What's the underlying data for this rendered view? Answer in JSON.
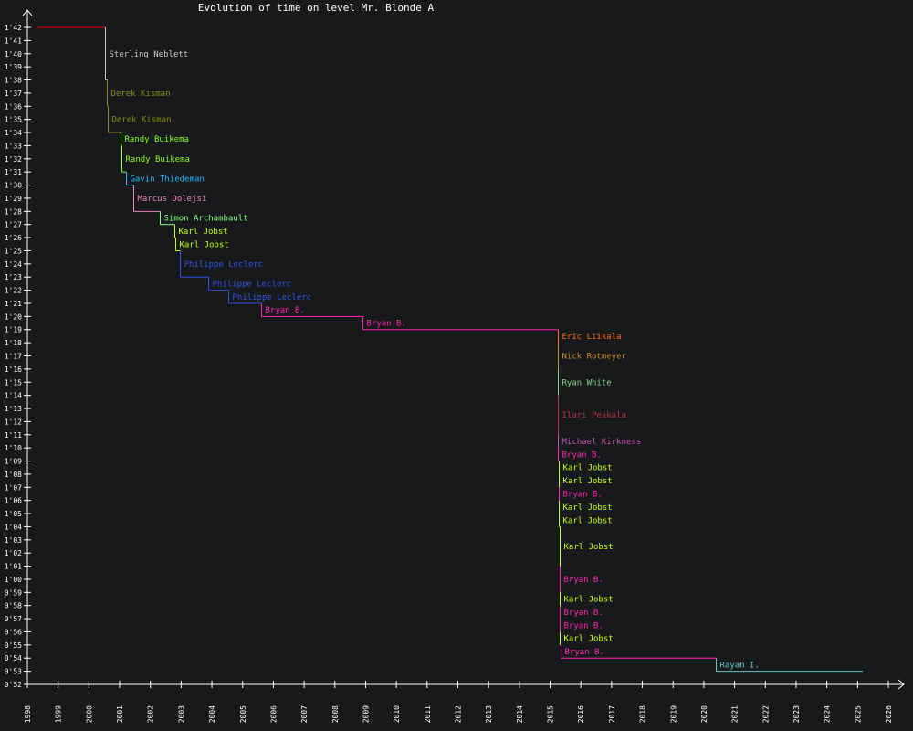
{
  "chart_data": {
    "type": "line",
    "title": "Evolution of time on level Mr. Blonde A",
    "xlabel": "",
    "ylabel": "",
    "xlim": [
      1998,
      2026
    ],
    "ylim_seconds": [
      52,
      102
    ],
    "x_ticks": [
      "1998",
      "1999",
      "2000",
      "2001",
      "2002",
      "2003",
      "2004",
      "2005",
      "2006",
      "2007",
      "2008",
      "2009",
      "2010",
      "2011",
      "2012",
      "2013",
      "2014",
      "2015",
      "2016",
      "2017",
      "2018",
      "2019",
      "2020",
      "2021",
      "2022",
      "2023",
      "2024",
      "2025",
      "2026"
    ],
    "y_ticks": [
      "0'52",
      "0'53",
      "0'54",
      "0'55",
      "0'56",
      "0'57",
      "0'58",
      "0'59",
      "1'00",
      "1'01",
      "1'02",
      "1'03",
      "1'04",
      "1'05",
      "1'06",
      "1'07",
      "1'08",
      "1'09",
      "1'10",
      "1'11",
      "1'12",
      "1'13",
      "1'14",
      "1'15",
      "1'16",
      "1'17",
      "1'18",
      "1'19",
      "1'20",
      "1'21",
      "1'22",
      "1'23",
      "1'24",
      "1'25",
      "1'26",
      "1'27",
      "1'28",
      "1'29",
      "1'30",
      "1'31",
      "1'32",
      "1'33",
      "1'34",
      "1'35",
      "1'36",
      "1'37",
      "1'38",
      "1'39",
      "1'40",
      "1'41",
      "1'42"
    ],
    "start": {
      "year": 1998.3,
      "time": 102,
      "color": "#ff0000"
    },
    "end_year": 2025.17,
    "records": [
      {
        "name": "Sterling Neblett",
        "year": 2000.52,
        "time": 98,
        "color": "#c8c8c8"
      },
      {
        "name": "Derek Kisman",
        "year": 2000.58,
        "time": 96,
        "color": "#8c8a14"
      },
      {
        "name": "Derek Kisman",
        "year": 2000.61,
        "time": 94,
        "color": "#8c8a14"
      },
      {
        "name": "Randy Buikema",
        "year": 2001.03,
        "time": 93,
        "color": "#86ff1c"
      },
      {
        "name": "Randy Buikema",
        "year": 2001.06,
        "time": 91,
        "color": "#86ff1c"
      },
      {
        "name": "Gavin Thiedeman",
        "year": 2001.21,
        "time": 90,
        "color": "#1cbcff"
      },
      {
        "name": "Marcus Dolejsi",
        "year": 2001.44,
        "time": 88,
        "color": "#e884c4"
      },
      {
        "name": "Simon Archambault",
        "year": 2002.31,
        "time": 87,
        "color": "#84ff84"
      },
      {
        "name": "Karl Jobst",
        "year": 2002.78,
        "time": 86,
        "color": "#ccff00"
      },
      {
        "name": "Karl Jobst",
        "year": 2002.81,
        "time": 85,
        "color": "#ccff00"
      },
      {
        "name": "Philippe Leclerc",
        "year": 2002.96,
        "time": 83,
        "color": "#2c54e4"
      },
      {
        "name": "Philippe Leclerc",
        "year": 2003.88,
        "time": 82,
        "color": "#2c54e4"
      },
      {
        "name": "Philippe Leclerc",
        "year": 2004.53,
        "time": 81,
        "color": "#2c54e4"
      },
      {
        "name": "Bryan B.",
        "year": 2005.6,
        "time": 80,
        "color": "#ff24b4"
      },
      {
        "name": "Bryan B.",
        "year": 2008.9,
        "time": 79,
        "color": "#ff24b4"
      },
      {
        "name": "Eric Liikala",
        "year": 2015.25,
        "time": 78,
        "color": "#ff6c14"
      },
      {
        "name": "Nick Rotmeyer",
        "year": 2015.25,
        "time": 76,
        "color": "#c88c24"
      },
      {
        "name": "Ryan White",
        "year": 2015.25,
        "time": 74,
        "color": "#84d484"
      },
      {
        "name": "Ilari Pekkala",
        "year": 2015.25,
        "time": 71,
        "color": "#b43444"
      },
      {
        "name": "Michael Kirkness",
        "year": 2015.25,
        "time": 70,
        "color": "#c454b4"
      },
      {
        "name": "Bryan B.",
        "year": 2015.25,
        "time": 69,
        "color": "#ff24b4"
      },
      {
        "name": "Karl Jobst",
        "year": 2015.27,
        "time": 68,
        "color": "#ccff00"
      },
      {
        "name": "Karl Jobst",
        "year": 2015.27,
        "time": 67,
        "color": "#ccff00"
      },
      {
        "name": "Bryan B.",
        "year": 2015.27,
        "time": 66,
        "color": "#ff24b4"
      },
      {
        "name": "Karl Jobst",
        "year": 2015.27,
        "time": 65,
        "color": "#ccff00"
      },
      {
        "name": "Karl Jobst",
        "year": 2015.27,
        "time": 64,
        "color": "#ccff00"
      },
      {
        "name": "Karl Jobst",
        "year": 2015.3,
        "time": 61,
        "color": "#ccff00"
      },
      {
        "name": "Bryan B.",
        "year": 2015.3,
        "time": 59,
        "color": "#ff24b4"
      },
      {
        "name": "Karl Jobst",
        "year": 2015.3,
        "time": 58,
        "color": "#ccff00"
      },
      {
        "name": "Bryan B.",
        "year": 2015.3,
        "time": 57,
        "color": "#ff24b4"
      },
      {
        "name": "Bryan B.",
        "year": 2015.3,
        "time": 56,
        "color": "#ff24b4"
      },
      {
        "name": "Karl Jobst",
        "year": 2015.3,
        "time": 55,
        "color": "#ccff00"
      },
      {
        "name": "Bryan B.",
        "year": 2015.33,
        "time": 54,
        "color": "#ff24b4"
      },
      {
        "name": "Rayan I.",
        "year": 2020.39,
        "time": 53,
        "color": "#64c4cc"
      }
    ],
    "grid": false,
    "legend": "none"
  }
}
